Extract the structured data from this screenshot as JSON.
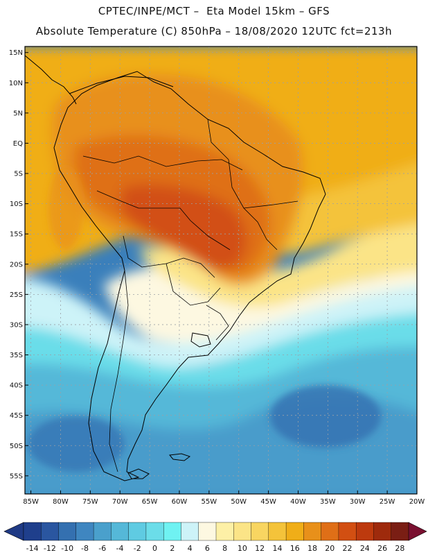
{
  "header": {
    "line1": "CPTEC/INPE/MCT –  Eta Model 15km – GFS",
    "line2": "Absolute Temperature (C) 850hPa – 18/08/2020 12UTC fct=213h"
  },
  "axes": {
    "lat_labels": [
      "15N",
      "10N",
      "5N",
      "EQ",
      "5S",
      "10S",
      "15S",
      "20S",
      "25S",
      "30S",
      "35S",
      "40S",
      "45S",
      "50S",
      "55S"
    ],
    "lat_values": [
      15,
      10,
      5,
      0,
      -5,
      -10,
      -15,
      -20,
      -25,
      -30,
      -35,
      -40,
      -45,
      -50,
      -55
    ],
    "lon_labels": [
      "85W",
      "80W",
      "75W",
      "70W",
      "65W",
      "60W",
      "55W",
      "50W",
      "45W",
      "40W",
      "35W",
      "30W",
      "25W",
      "20W"
    ],
    "lon_values": [
      -85,
      -80,
      -75,
      -70,
      -65,
      -60,
      -55,
      -50,
      -45,
      -40,
      -35,
      -30,
      -25,
      -20
    ],
    "lat_range": [
      -58,
      16
    ],
    "lon_range": [
      -86,
      -20
    ]
  },
  "colorbar": {
    "labels": [
      "-14",
      "-12",
      "-10",
      "-8",
      "-6",
      "-4",
      "-2",
      "0",
      "2",
      "4",
      "6",
      "8",
      "10",
      "12",
      "14",
      "16",
      "18",
      "20",
      "22",
      "24",
      "26",
      "28"
    ],
    "colors": [
      "#1f3f8c",
      "#2a56a0",
      "#3470b0",
      "#3f86c0",
      "#4aa0cc",
      "#55b8d8",
      "#5fcbe2",
      "#6bdde9",
      "#6ff2f2",
      "#cdf3f8",
      "#fdf8e1",
      "#fdf0a6",
      "#fbe487",
      "#f8d561",
      "#f4c33a",
      "#f0ae18",
      "#e8901a",
      "#df6f17",
      "#d24f12",
      "#bd3a0e",
      "#9e2a0c",
      "#7a1e14"
    ],
    "min": -14,
    "max": 28,
    "step": 2,
    "units": "C"
  },
  "map": {
    "variable": "Absolute Temperature",
    "level": "850hPa",
    "units": "C",
    "region": "South America"
  }
}
